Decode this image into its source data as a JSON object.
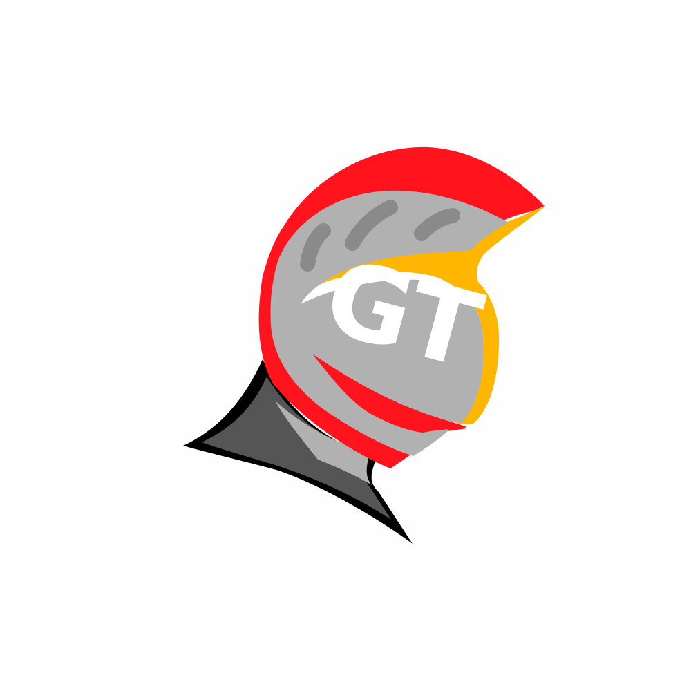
{
  "logo": {
    "monogram": "GT",
    "icon": "knight-helmet-icon",
    "colors": {
      "background": "#fefefe",
      "crest_red": "#ff141e",
      "trim_gold": "#ffb600",
      "helmet_gray": "#b1b1b1",
      "vent_gray": "#8a8a8a",
      "neck_dark": "#555555",
      "outline_black": "#000000",
      "letters_white": "#ffffff"
    }
  }
}
